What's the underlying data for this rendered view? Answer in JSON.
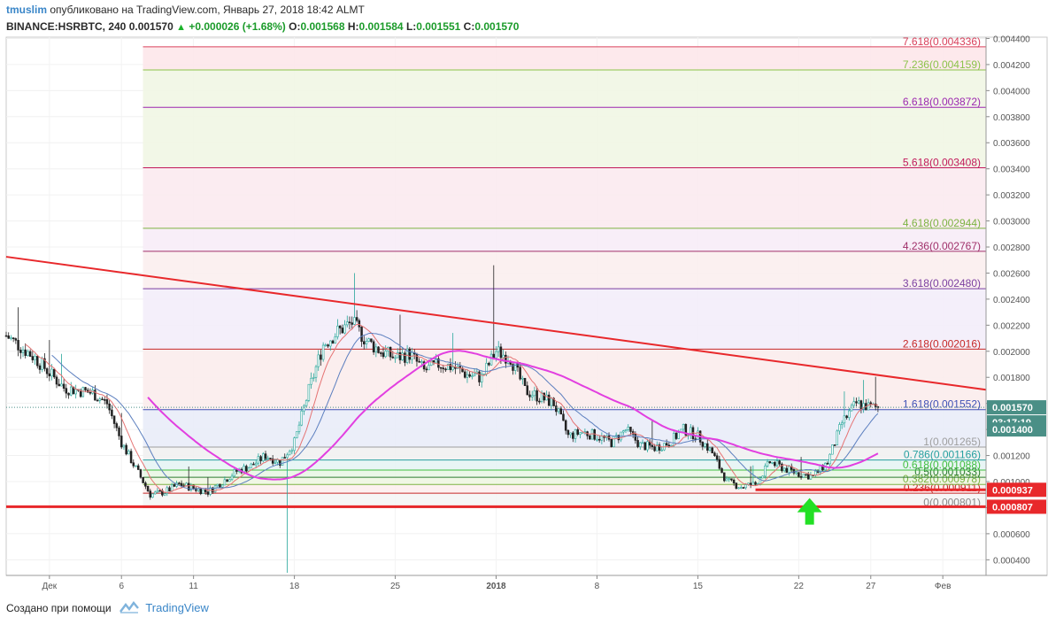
{
  "header": {
    "username": "tmuslim",
    "published_text": "опубликовано на TradingView.com, Январь 27, 2018 18:42 ALMT",
    "symbol": "BINANCE:HSRBTC, 240",
    "last": "0.001570",
    "change": "+0.000026 (+1.68%)",
    "o_label": "O:",
    "o_value": "0.001568",
    "h_label": "H:",
    "h_value": "0.001584",
    "l_label": "L:",
    "l_value": "0.001551",
    "c_label": "C:",
    "c_value": "0.001570"
  },
  "footer": {
    "created_with": "Создано при помощи",
    "brand": "TradingView"
  },
  "colors": {
    "up": "#26a69a",
    "down": "#222222",
    "ma_long": "#e23fe0",
    "ma_fast": "#e57373",
    "ma_mid": "#5c7fbf",
    "trendline": "#e8282b",
    "support": "#e8282b",
    "arrow": "#22e024",
    "price_tag": "#4a8f86",
    "red_tag": "#e8282b"
  },
  "chart_data": {
    "type": "candlestick",
    "interval": "240",
    "ylim": [
      0.00028,
      0.00441
    ],
    "x_range": [
      "2017-11-28",
      "2018-02-04"
    ],
    "y_ticks": [
      "0.000400",
      "0.000600",
      "0.000800",
      "0.001000",
      "0.001200",
      "0.001400",
      "0.001600",
      "0.001800",
      "0.002000",
      "0.002200",
      "0.002400",
      "0.002600",
      "0.002800",
      "0.003000",
      "0.003200",
      "0.003400",
      "0.003600",
      "0.003800",
      "0.004000",
      "0.004200",
      "0.004400"
    ],
    "x_ticks": [
      {
        "label": "Дек",
        "date": "2017-12-01"
      },
      {
        "label": "6",
        "date": "2017-12-06"
      },
      {
        "label": "11",
        "date": "2017-12-11"
      },
      {
        "label": "18",
        "date": "2017-12-18"
      },
      {
        "label": "25",
        "date": "2017-12-25"
      },
      {
        "label": "2018",
        "date": "2018-01-01"
      },
      {
        "label": "8",
        "date": "2018-01-08"
      },
      {
        "label": "15",
        "date": "2018-01-15"
      },
      {
        "label": "22",
        "date": "2018-01-22"
      },
      {
        "label": "27",
        "date": "2018-01-27"
      },
      {
        "label": "Фев",
        "date": "2018-02-01"
      }
    ],
    "closes": [
      [
        "2017-11-28",
        0.00212
      ],
      [
        "2017-11-30",
        0.00195
      ],
      [
        "2017-12-02",
        0.00172
      ],
      [
        "2017-12-04",
        0.00168
      ],
      [
        "2017-12-05",
        0.0016
      ],
      [
        "2017-12-06",
        0.0013
      ],
      [
        "2017-12-07",
        0.0011
      ],
      [
        "2017-12-08",
        0.0009
      ],
      [
        "2017-12-09",
        0.00092
      ],
      [
        "2017-12-10",
        0.00098
      ],
      [
        "2017-12-11",
        0.00095
      ],
      [
        "2017-12-12",
        0.00092
      ],
      [
        "2017-12-13",
        0.001
      ],
      [
        "2017-12-14",
        0.00108
      ],
      [
        "2017-12-15",
        0.00112
      ],
      [
        "2017-12-16",
        0.0012
      ],
      [
        "2017-12-17",
        0.00115
      ],
      [
        "2017-12-18",
        0.0013
      ],
      [
        "2017-12-19",
        0.0017
      ],
      [
        "2017-12-20",
        0.00205
      ],
      [
        "2017-12-21",
        0.00215
      ],
      [
        "2017-12-22",
        0.00222
      ],
      [
        "2017-12-23",
        0.00208
      ],
      [
        "2017-12-24",
        0.002
      ],
      [
        "2017-12-25",
        0.00195
      ],
      [
        "2017-12-26",
        0.00198
      ],
      [
        "2017-12-27",
        0.00185
      ],
      [
        "2017-12-28",
        0.0019
      ],
      [
        "2017-12-29",
        0.00188
      ],
      [
        "2017-12-30",
        0.00182
      ],
      [
        "2017-12-31",
        0.0018
      ],
      [
        "2018-01-01",
        0.002
      ],
      [
        "2018-01-02",
        0.00195
      ],
      [
        "2018-01-03",
        0.0017
      ],
      [
        "2018-01-04",
        0.00165
      ],
      [
        "2018-01-05",
        0.0016
      ],
      [
        "2018-01-06",
        0.00135
      ],
      [
        "2018-01-07",
        0.00138
      ],
      [
        "2018-01-08",
        0.00135
      ],
      [
        "2018-01-09",
        0.0013
      ],
      [
        "2018-01-10",
        0.0014
      ],
      [
        "2018-01-11",
        0.00128
      ],
      [
        "2018-01-12",
        0.00126
      ],
      [
        "2018-01-13",
        0.0013
      ],
      [
        "2018-01-14",
        0.0014
      ],
      [
        "2018-01-15",
        0.00135
      ],
      [
        "2018-01-16",
        0.00122
      ],
      [
        "2018-01-17",
        0.001
      ],
      [
        "2018-01-18",
        0.00096
      ],
      [
        "2018-01-19",
        0.00098
      ],
      [
        "2018-01-20",
        0.00115
      ],
      [
        "2018-01-21",
        0.0011
      ],
      [
        "2018-01-22",
        0.00106
      ],
      [
        "2018-01-23",
        0.00104
      ],
      [
        "2018-01-24",
        0.00115
      ],
      [
        "2018-01-25",
        0.00145
      ],
      [
        "2018-01-26",
        0.0016
      ],
      [
        "2018-01-27",
        0.00157
      ]
    ],
    "annotations": {
      "trendline": [
        [
          "2017-11-28",
          0.002725
        ],
        [
          "2018-02-04",
          0.001705
        ]
      ],
      "support_levels": [
        0.000937,
        0.000807
      ],
      "fib_levels": [
        {
          "label": "7.618(0.004336)",
          "value": 0.004336
        },
        {
          "label": "7.236(0.004159)",
          "value": 0.004159
        },
        {
          "label": "6.618(0.003872)",
          "value": 0.003872
        },
        {
          "label": "5.618(0.003408)",
          "value": 0.003408
        },
        {
          "label": "4.618(0.002944)",
          "value": 0.002944
        },
        {
          "label": "4.236(0.002767)",
          "value": 0.002767
        },
        {
          "label": "3.618(0.002480)",
          "value": 0.00248
        },
        {
          "label": "2.618(0.002016)",
          "value": 0.002016
        },
        {
          "label": "1.618(0.001552)",
          "value": 0.001552
        },
        {
          "label": "1(0.001265)",
          "value": 0.001265
        },
        {
          "label": "0.786(0.001166)",
          "value": 0.001166
        },
        {
          "label": "0.618(0.001088)",
          "value": 0.001088
        },
        {
          "label": "0.5(0.001033)",
          "value": 0.001033
        },
        {
          "label": "0.382(0.000978)",
          "value": 0.000978
        },
        {
          "label": "0.236(0.000911)",
          "value": 0.000911
        },
        {
          "label": "0(0.000801)",
          "value": 0.000801
        }
      ]
    },
    "price_tags": {
      "last_price": "0.001570",
      "countdown": "03:17:19",
      "tag_2": "0.001400",
      "red_1": "0.000937",
      "red_2": "0.000807"
    }
  }
}
